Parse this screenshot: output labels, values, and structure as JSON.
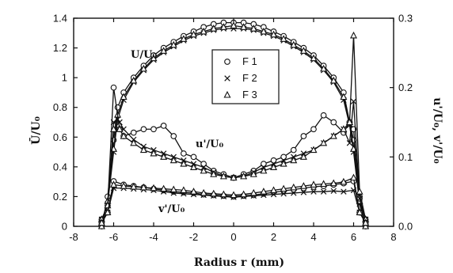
{
  "chart_data": {
    "type": "line",
    "xlabel": "Radius r (mm)",
    "ylabel_left": "Ū/U₀",
    "ylabel_right": "u'/U₀, v'/U₀",
    "xlim": [
      -8,
      8
    ],
    "ylim_left": [
      0,
      1.4
    ],
    "ylim_right": [
      0,
      0.3
    ],
    "x_ticks": [
      "-8",
      "-6",
      "-4",
      "-2",
      "0",
      "2",
      "4",
      "6",
      "8"
    ],
    "y_left_ticks": [
      "0",
      "0.2",
      "0.4",
      "0.6",
      "0.8",
      "1",
      "1.2",
      "1.4"
    ],
    "y_right_ticks": [
      "0.0",
      "0.1",
      "0.2",
      "0.3"
    ],
    "annotations": [
      "U/U₀",
      "u'/U₀",
      "v'/U₀"
    ],
    "legend": {
      "position": "top-center",
      "entries": [
        {
          "label": "F 1",
          "marker": "circle"
        },
        {
          "label": "F 2",
          "marker": "x"
        },
        {
          "label": "F 3",
          "marker": "triangle"
        }
      ]
    },
    "series": [
      {
        "name": "F 1",
        "quantity": "U/U₀",
        "axis": "left",
        "marker": "circle",
        "x": [
          -6.6,
          -6.3,
          -6.0,
          -5.8,
          -5.5,
          -5.0,
          -4.5,
          -4.0,
          -3.5,
          -3.0,
          -2.5,
          -2.0,
          -1.5,
          -1.0,
          -0.5,
          0,
          0.5,
          1.0,
          1.5,
          2.0,
          2.5,
          3.0,
          3.5,
          4.0,
          4.5,
          5.0,
          5.5,
          5.8,
          6.0,
          6.3,
          6.6
        ],
        "y": [
          0.0,
          0.2,
          0.58,
          0.8,
          0.9,
          1.0,
          1.08,
          1.15,
          1.2,
          1.24,
          1.28,
          1.31,
          1.34,
          1.36,
          1.37,
          1.37,
          1.37,
          1.36,
          1.34,
          1.31,
          1.28,
          1.24,
          1.2,
          1.15,
          1.08,
          1.0,
          0.9,
          0.7,
          0.58,
          0.2,
          0.0
        ]
      },
      {
        "name": "F 2",
        "quantity": "U/U₀",
        "axis": "left",
        "marker": "x",
        "x": [
          -6.6,
          -6.3,
          -6.0,
          -5.8,
          -5.5,
          -5.0,
          -4.5,
          -4.0,
          -3.5,
          -3.0,
          -2.5,
          -2.0,
          -1.5,
          -1.0,
          -0.5,
          0,
          0.5,
          1.0,
          1.5,
          2.0,
          2.5,
          3.0,
          3.5,
          4.0,
          4.5,
          5.0,
          5.5,
          5.8,
          6.0,
          6.3,
          6.6
        ],
        "y": [
          0.0,
          0.15,
          0.5,
          0.72,
          0.85,
          0.97,
          1.05,
          1.12,
          1.17,
          1.21,
          1.25,
          1.28,
          1.3,
          1.32,
          1.33,
          1.33,
          1.33,
          1.32,
          1.3,
          1.28,
          1.25,
          1.21,
          1.17,
          1.12,
          1.05,
          0.97,
          0.85,
          0.68,
          0.5,
          0.15,
          0.0
        ]
      },
      {
        "name": "F 3",
        "quantity": "U/U₀",
        "axis": "left",
        "marker": "triangle",
        "x": [
          -6.6,
          -6.3,
          -6.0,
          -5.8,
          -5.5,
          -5.0,
          -4.5,
          -4.0,
          -3.5,
          -3.0,
          -2.5,
          -2.0,
          -1.5,
          -1.0,
          -0.5,
          0,
          0.5,
          1.0,
          1.5,
          2.0,
          2.5,
          3.0,
          3.5,
          4.0,
          4.5,
          5.0,
          5.5,
          5.8,
          6.0,
          6.3,
          6.6
        ],
        "y": [
          0.0,
          0.17,
          0.52,
          0.75,
          0.87,
          0.98,
          1.06,
          1.13,
          1.18,
          1.22,
          1.26,
          1.29,
          1.31,
          1.33,
          1.34,
          1.35,
          1.34,
          1.33,
          1.31,
          1.29,
          1.26,
          1.22,
          1.18,
          1.13,
          1.06,
          0.98,
          0.87,
          0.7,
          0.52,
          0.17,
          0.0
        ]
      },
      {
        "name": "F 1",
        "quantity": "u'/U₀",
        "axis": "right",
        "marker": "circle",
        "x": [
          -6.6,
          -6.3,
          -6.0,
          -5.7,
          -5.5,
          -5.0,
          -4.5,
          -4.0,
          -3.5,
          -3.0,
          -2.5,
          -2.0,
          -1.5,
          -1.0,
          -0.5,
          0,
          0.5,
          1.0,
          1.5,
          2.0,
          2.5,
          3.0,
          3.5,
          4.0,
          4.5,
          5.0,
          5.5,
          5.8,
          6.0,
          6.3,
          6.6
        ],
        "y": [
          0.01,
          0.03,
          0.2,
          0.14,
          0.13,
          0.135,
          0.14,
          0.14,
          0.145,
          0.13,
          0.105,
          0.1,
          0.09,
          0.08,
          0.075,
          0.07,
          0.075,
          0.08,
          0.09,
          0.095,
          0.1,
          0.11,
          0.13,
          0.14,
          0.16,
          0.15,
          0.135,
          0.15,
          0.14,
          0.04,
          0.01
        ]
      },
      {
        "name": "F 2",
        "quantity": "u'/U₀",
        "axis": "right",
        "marker": "x",
        "x": [
          -6.6,
          -6.3,
          -6.0,
          -5.7,
          -5.5,
          -5.0,
          -4.5,
          -4.0,
          -3.5,
          -3.0,
          -2.5,
          -2.0,
          -1.5,
          -1.0,
          -0.5,
          0,
          0.5,
          1.0,
          1.5,
          2.0,
          2.5,
          3.0,
          3.5,
          4.0,
          4.5,
          5.0,
          5.5,
          5.8,
          6.0,
          6.3,
          6.6
        ],
        "y": [
          0.01,
          0.03,
          0.15,
          0.15,
          0.14,
          0.125,
          0.115,
          0.11,
          0.105,
          0.1,
          0.095,
          0.09,
          0.085,
          0.078,
          0.072,
          0.07,
          0.072,
          0.078,
          0.085,
          0.09,
          0.095,
          0.1,
          0.105,
          0.11,
          0.12,
          0.13,
          0.14,
          0.12,
          0.18,
          0.04,
          0.01
        ]
      },
      {
        "name": "F 3",
        "quantity": "u'/U₀",
        "axis": "right",
        "marker": "triangle",
        "x": [
          -6.6,
          -6.3,
          -6.0,
          -5.7,
          -5.5,
          -5.0,
          -4.5,
          -4.0,
          -3.5,
          -3.0,
          -2.5,
          -2.0,
          -1.5,
          -1.0,
          -0.5,
          0,
          0.5,
          1.0,
          1.5,
          2.0,
          2.5,
          3.0,
          3.5,
          4.0,
          4.5,
          5.0,
          5.5,
          5.8,
          6.0,
          6.3,
          6.6
        ],
        "y": [
          0.01,
          0.03,
          0.14,
          0.14,
          0.13,
          0.12,
          0.11,
          0.105,
          0.1,
          0.095,
          0.09,
          0.085,
          0.08,
          0.075,
          0.072,
          0.07,
          0.072,
          0.075,
          0.08,
          0.085,
          0.09,
          0.095,
          0.1,
          0.11,
          0.12,
          0.13,
          0.14,
          0.15,
          0.275,
          0.05,
          0.01
        ]
      },
      {
        "name": "F 1",
        "quantity": "v'/U₀",
        "axis": "right",
        "marker": "circle",
        "x": [
          -6.6,
          -6.3,
          -6.0,
          -5.5,
          -5.0,
          -4.5,
          -4.0,
          -3.5,
          -3.0,
          -2.5,
          -2.0,
          -1.5,
          -1.0,
          -0.5,
          0,
          0.5,
          1.0,
          1.5,
          2.0,
          2.5,
          3.0,
          3.5,
          4.0,
          4.5,
          5.0,
          5.5,
          6.0,
          6.3,
          6.6
        ],
        "y": [
          0.005,
          0.02,
          0.065,
          0.06,
          0.058,
          0.056,
          0.054,
          0.052,
          0.05,
          0.049,
          0.048,
          0.046,
          0.045,
          0.044,
          0.043,
          0.044,
          0.045,
          0.047,
          0.049,
          0.051,
          0.053,
          0.055,
          0.057,
          0.058,
          0.06,
          0.062,
          0.065,
          0.02,
          0.005
        ]
      },
      {
        "name": "F 2",
        "quantity": "v'/U₀",
        "axis": "right",
        "marker": "x",
        "x": [
          -6.6,
          -6.3,
          -6.0,
          -5.5,
          -5.0,
          -4.5,
          -4.0,
          -3.5,
          -3.0,
          -2.5,
          -2.0,
          -1.5,
          -1.0,
          -0.5,
          0,
          0.5,
          1.0,
          1.5,
          2.0,
          2.5,
          3.0,
          3.5,
          4.0,
          4.5,
          5.0,
          5.5,
          6.0,
          6.3,
          6.6
        ],
        "y": [
          0.005,
          0.02,
          0.055,
          0.055,
          0.054,
          0.053,
          0.052,
          0.05,
          0.048,
          0.047,
          0.046,
          0.045,
          0.044,
          0.043,
          0.042,
          0.043,
          0.044,
          0.045,
          0.046,
          0.047,
          0.048,
          0.049,
          0.05,
          0.05,
          0.051,
          0.05,
          0.052,
          0.02,
          0.005
        ]
      },
      {
        "name": "F 3",
        "quantity": "v'/U₀",
        "axis": "right",
        "marker": "triangle",
        "x": [
          -6.6,
          -6.3,
          -6.0,
          -5.5,
          -5.0,
          -4.5,
          -4.0,
          -3.5,
          -3.0,
          -2.5,
          -2.0,
          -1.5,
          -1.0,
          -0.5,
          0,
          0.5,
          1.0,
          1.5,
          2.0,
          2.5,
          3.0,
          3.5,
          4.0,
          4.5,
          5.0,
          5.5,
          6.0,
          6.3,
          6.6
        ],
        "y": [
          0.005,
          0.02,
          0.06,
          0.058,
          0.057,
          0.056,
          0.055,
          0.054,
          0.053,
          0.052,
          0.05,
          0.048,
          0.047,
          0.046,
          0.045,
          0.046,
          0.048,
          0.05,
          0.052,
          0.054,
          0.056,
          0.058,
          0.06,
          0.061,
          0.062,
          0.064,
          0.07,
          0.02,
          0.005
        ]
      }
    ]
  }
}
